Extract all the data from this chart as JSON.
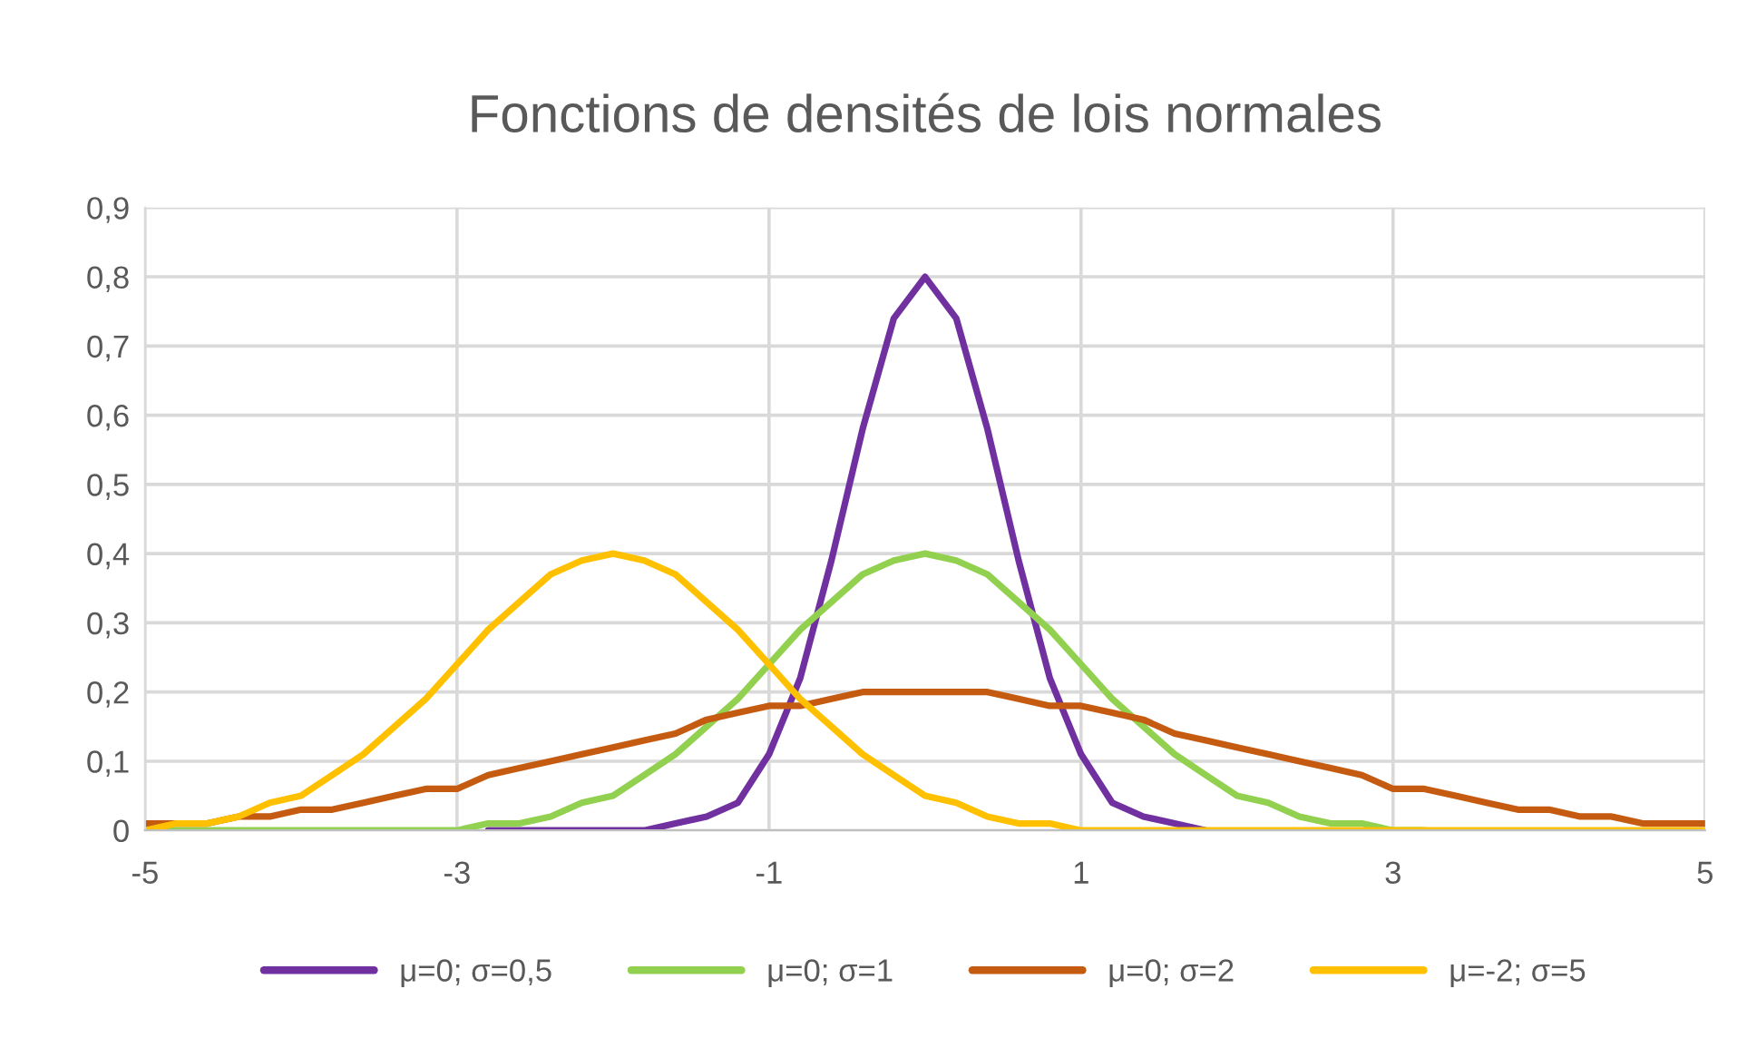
{
  "chart_data": {
    "type": "line",
    "title": "Fonctions de densités de lois normales",
    "x": [
      -5,
      -4.8,
      -4.6,
      -4.4,
      -4.2,
      -4,
      -3.8,
      -3.6,
      -3.4,
      -3.2,
      -3,
      -2.8,
      -2.6,
      -2.4,
      -2.2,
      -2,
      -1.8,
      -1.6,
      -1.4,
      -1.2,
      -1,
      -0.8,
      -0.6,
      -0.4,
      -0.2,
      0,
      0.2,
      0.4,
      0.6,
      0.8,
      1,
      1.2,
      1.4,
      1.6,
      1.8,
      2,
      2.2,
      2.4,
      2.6,
      2.8,
      3,
      3.2,
      3.4,
      3.6,
      3.8,
      4,
      4.2,
      4.4,
      4.6,
      4.8,
      5
    ],
    "series": [
      {
        "name": "μ=0; σ=0,5",
        "color": "#7030a0",
        "values": [
          null,
          null,
          null,
          null,
          null,
          null,
          null,
          null,
          null,
          null,
          null,
          0,
          0,
          0,
          0,
          0,
          0,
          0.01,
          0.02,
          0.04,
          0.11,
          0.22,
          0.39,
          0.58,
          0.74,
          0.8,
          0.74,
          0.58,
          0.39,
          0.22,
          0.11,
          0.04,
          0.02,
          0.01,
          0,
          null,
          null,
          null,
          null,
          null,
          null,
          null,
          null,
          null,
          null,
          null,
          null,
          null,
          null,
          null,
          null
        ]
      },
      {
        "name": "μ=0; σ=1",
        "color": "#92d050",
        "values": [
          0,
          0,
          0,
          0,
          0,
          0,
          0,
          0,
          0,
          0,
          0,
          0.01,
          0.01,
          0.02,
          0.04,
          0.05,
          0.08,
          0.11,
          0.15,
          0.19,
          0.24,
          0.29,
          0.33,
          0.37,
          0.39,
          0.4,
          0.39,
          0.37,
          0.33,
          0.29,
          0.24,
          0.19,
          0.15,
          0.11,
          0.08,
          0.05,
          0.04,
          0.02,
          0.01,
          0.01,
          0,
          0,
          null,
          null,
          null,
          null,
          null,
          null,
          null,
          null,
          null
        ]
      },
      {
        "name": "μ=0; σ=2",
        "color": "#c55a11",
        "values": [
          0.01,
          0.01,
          0.01,
          0.02,
          0.02,
          0.03,
          0.03,
          0.04,
          0.05,
          0.06,
          0.06,
          0.08,
          0.09,
          0.1,
          0.11,
          0.12,
          0.13,
          0.14,
          0.16,
          0.17,
          0.18,
          0.18,
          0.19,
          0.2,
          0.2,
          0.2,
          0.2,
          0.2,
          0.19,
          0.18,
          0.18,
          0.17,
          0.16,
          0.14,
          0.13,
          0.12,
          0.11,
          0.1,
          0.09,
          0.08,
          0.06,
          0.06,
          0.05,
          0.04,
          0.03,
          0.03,
          0.02,
          0.02,
          0.01,
          0.01,
          0.01
        ]
      },
      {
        "name": "μ=-2; σ=5",
        "color": "#ffc000",
        "values": [
          0,
          0.01,
          0.01,
          0.02,
          0.04,
          0.05,
          0.08,
          0.11,
          0.15,
          0.19,
          0.24,
          0.29,
          0.33,
          0.37,
          0.39,
          0.4,
          0.39,
          0.37,
          0.33,
          0.29,
          0.24,
          0.19,
          0.15,
          0.11,
          0.08,
          0.05,
          0.04,
          0.02,
          0.01,
          0.01,
          0,
          0,
          0,
          0,
          0,
          0,
          0,
          0,
          0,
          0,
          0,
          0,
          0,
          0,
          0,
          0,
          0,
          0,
          0,
          0,
          0
        ]
      }
    ],
    "xlim": [
      -5,
      5
    ],
    "xticks": [
      -5,
      -3,
      -1,
      1,
      3,
      5
    ],
    "ylim": [
      0,
      0.9
    ],
    "yticks": [
      0,
      {
        "value": 0.1,
        "label": "0,1"
      },
      {
        "value": 0.2,
        "label": "0,2"
      },
      {
        "value": 0.3,
        "label": "0,3"
      },
      {
        "value": 0.4,
        "label": "0,4"
      },
      {
        "value": 0.5,
        "label": "0,5"
      },
      {
        "value": 0.6,
        "label": "0,6"
      },
      {
        "value": 0.7,
        "label": "0,7"
      },
      {
        "value": 0.8,
        "label": "0,8"
      },
      {
        "value": 0.9,
        "label": "0,9"
      }
    ],
    "grid": true,
    "legend": "bottom",
    "marker": "none",
    "line_style": "solid"
  }
}
